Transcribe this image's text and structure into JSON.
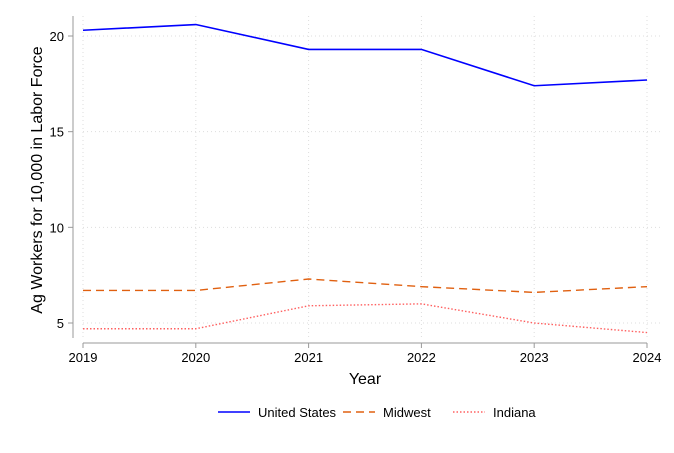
{
  "chart_data": {
    "type": "line",
    "title": "",
    "xlabel": "Year",
    "ylabel": "Ag Workers for 10,000 in Labor Force",
    "x": [
      2019,
      2020,
      2021,
      2022,
      2023,
      2024
    ],
    "xticks": [
      "2019",
      "2020",
      "2021",
      "2022",
      "2023",
      "2024"
    ],
    "yticks": [
      "5",
      "10",
      "15",
      "20"
    ],
    "ylim": [
      3.95,
      21.05
    ],
    "grid": true,
    "legend_position": "bottom",
    "series": [
      {
        "name": "United States",
        "values": [
          20.3,
          20.6,
          19.3,
          19.3,
          17.4,
          17.7
        ],
        "color": "#0000ff",
        "style": "solid"
      },
      {
        "name": "Midwest",
        "values": [
          6.7,
          6.7,
          7.3,
          6.9,
          6.6,
          6.9
        ],
        "color": "#e06010",
        "style": "dashed"
      },
      {
        "name": "Indiana",
        "values": [
          4.7,
          4.7,
          5.9,
          6.0,
          5.0,
          4.5
        ],
        "color": "#ff6060",
        "style": "dotted"
      }
    ]
  }
}
